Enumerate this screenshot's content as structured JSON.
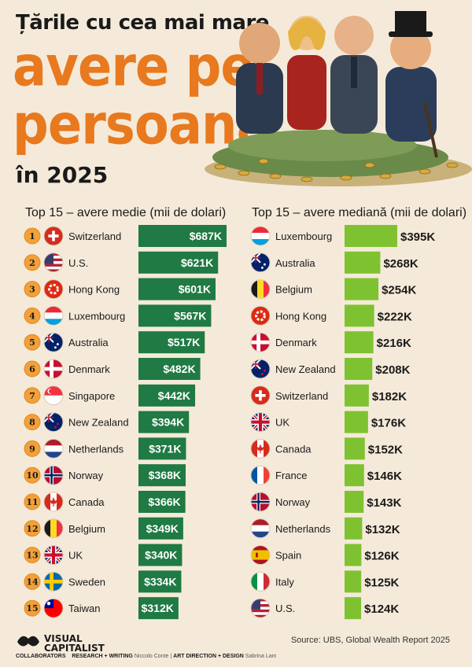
{
  "title": {
    "line1": "Țările cu cea mai mare",
    "line2": "avere pe",
    "line3": "persoană",
    "line4": "în 2025"
  },
  "chart_data": [
    {
      "type": "bar",
      "title": "Top 15 – avere medie (mii de dolari)",
      "categories": [
        "Switzerland",
        "U.S.",
        "Hong Kong",
        "Luxembourg",
        "Australia",
        "Denmark",
        "Singapore",
        "New Zealand",
        "Netherlands",
        "Norway",
        "Canada",
        "Belgium",
        "UK",
        "Sweden",
        "Taiwan"
      ],
      "ranks": [
        "1",
        "2",
        "3",
        "4",
        "5",
        "6",
        "7",
        "8",
        "9",
        "10",
        "11",
        "12",
        "13",
        "14",
        "15"
      ],
      "values": [
        687,
        621,
        601,
        567,
        517,
        482,
        442,
        394,
        371,
        368,
        366,
        349,
        340,
        334,
        312
      ],
      "value_labels": [
        "$687K",
        "$621K",
        "$601K",
        "$567K",
        "$517K",
        "$482K",
        "$442K",
        "$394K",
        "$371K",
        "$368K",
        "$366K",
        "$349K",
        "$340K",
        "$334K",
        "$312K"
      ],
      "color": "#1f7a43"
    },
    {
      "type": "bar",
      "title": "Top 15 – avere mediană (mii de dolari)",
      "categories": [
        "Luxembourg",
        "Australia",
        "Belgium",
        "Hong Kong",
        "Denmark",
        "New Zealand",
        "Switzerland",
        "UK",
        "Canada",
        "France",
        "Norway",
        "Netherlands",
        "Spain",
        "Italy",
        "U.S."
      ],
      "values": [
        395,
        268,
        254,
        222,
        216,
        208,
        182,
        176,
        152,
        146,
        143,
        132,
        126,
        125,
        124
      ],
      "value_labels": [
        "$395K",
        "$268K",
        "$254K",
        "$222K",
        "$216K",
        "$208K",
        "$182K",
        "$176K",
        "$152K",
        "$146K",
        "$143K",
        "$132K",
        "$126K",
        "$125K",
        "$124K"
      ],
      "color": "#7fc231"
    }
  ],
  "footer": {
    "logo_line1": "VISUAL",
    "logo_line2": "CAPITALIST",
    "collaborators": "COLLABORATORS",
    "research_label": "RESEARCH + WRITING",
    "research_name": "Niccolo Conte",
    "separator": "|",
    "art_label": "ART DIRECTION + DESIGN",
    "art_name": "Sabrina Lam",
    "source": "Source: UBS, Global Wealth Report 2025"
  }
}
